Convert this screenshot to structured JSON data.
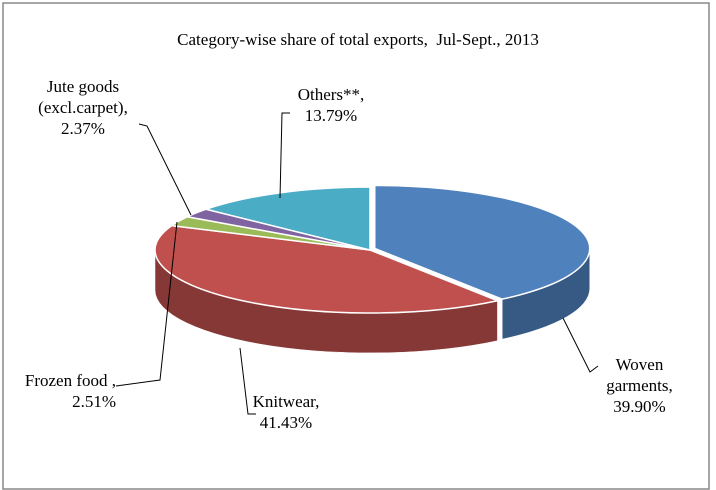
{
  "chart_data": {
    "type": "pie3d",
    "title": "Category-wise share of total exports,  Jul-Sept., 2013",
    "categories": [
      "Woven garments,",
      "Knitwear,",
      "Frozen food ,",
      "Jute goods (excl.carpet),",
      "Others**,"
    ],
    "values": [
      39.9,
      41.43,
      2.51,
      2.37,
      13.79
    ],
    "value_labels": [
      "39.90%",
      "41.43%",
      "2.51%",
      "2.37%",
      "13.79%"
    ],
    "colors": [
      "#4f81bd",
      "#c0504d",
      "#9bbb59",
      "#8064a2",
      "#4bacc6"
    ]
  }
}
